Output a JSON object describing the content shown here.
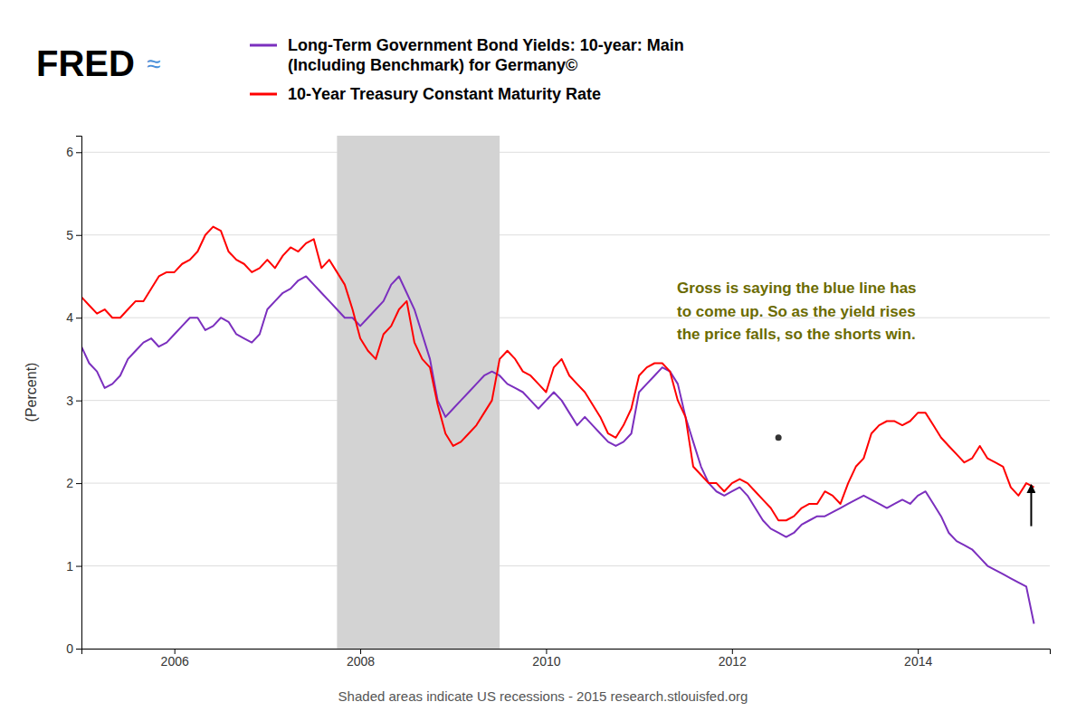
{
  "chart_data": {
    "type": "line",
    "logo": "FRED",
    "logo_mark": "≈",
    "y_label": "(Percent)",
    "footnote": "Shaded areas indicate US recessions - 2015 research.stlouisfed.org",
    "legend": "top",
    "grid": true,
    "xlim": [
      2005.0,
      2015.42
    ],
    "xticks": [
      2006,
      2008,
      2010,
      2012,
      2014
    ],
    "ylim": [
      0,
      6.2
    ],
    "yticks": [
      0,
      1,
      2,
      3,
      4,
      5,
      6
    ],
    "shaded_regions": [
      {
        "x_start": 2007.75,
        "x_end": 2009.5
      }
    ],
    "annotations": [
      {
        "type": "text",
        "text": "Gross is saying the blue line has\nto come up. So as the yield rises\nthe price falls, so the shorts win.",
        "color": "#6b6b00"
      },
      {
        "type": "point",
        "x": 2012.5,
        "y": 2.55
      },
      {
        "type": "arrow",
        "x": 2015.22,
        "y_start": 1.48,
        "y_end": 1.98
      }
    ],
    "x": [
      2005.0,
      2005.083,
      2005.167,
      2005.25,
      2005.333,
      2005.417,
      2005.5,
      2005.583,
      2005.667,
      2005.75,
      2005.833,
      2005.917,
      2006.0,
      2006.083,
      2006.167,
      2006.25,
      2006.333,
      2006.417,
      2006.5,
      2006.583,
      2006.667,
      2006.75,
      2006.833,
      2006.917,
      2007.0,
      2007.083,
      2007.167,
      2007.25,
      2007.333,
      2007.417,
      2007.5,
      2007.583,
      2007.667,
      2007.75,
      2007.833,
      2007.917,
      2008.0,
      2008.083,
      2008.167,
      2008.25,
      2008.333,
      2008.417,
      2008.5,
      2008.583,
      2008.667,
      2008.75,
      2008.833,
      2008.917,
      2009.0,
      2009.083,
      2009.167,
      2009.25,
      2009.333,
      2009.417,
      2009.5,
      2009.583,
      2009.667,
      2009.75,
      2009.833,
      2009.917,
      2010.0,
      2010.083,
      2010.167,
      2010.25,
      2010.333,
      2010.417,
      2010.5,
      2010.583,
      2010.667,
      2010.75,
      2010.833,
      2010.917,
      2011.0,
      2011.083,
      2011.167,
      2011.25,
      2011.333,
      2011.417,
      2011.5,
      2011.583,
      2011.667,
      2011.75,
      2011.833,
      2011.917,
      2012.0,
      2012.083,
      2012.167,
      2012.25,
      2012.333,
      2012.417,
      2012.5,
      2012.583,
      2012.667,
      2012.75,
      2012.833,
      2012.917,
      2013.0,
      2013.083,
      2013.167,
      2013.25,
      2013.333,
      2013.417,
      2013.5,
      2013.583,
      2013.667,
      2013.75,
      2013.833,
      2013.917,
      2014.0,
      2014.083,
      2014.167,
      2014.25,
      2014.333,
      2014.417,
      2014.5,
      2014.583,
      2014.667,
      2014.75,
      2014.833,
      2014.917,
      2015.0,
      2015.083,
      2015.167,
      2015.25
    ],
    "series": [
      {
        "name": "Long-Term Government Bond Yields: 10-year: Main\n(Including Benchmark) for Germany©",
        "color": "#7B2FBE",
        "values": [
          3.65,
          3.45,
          3.35,
          3.15,
          3.2,
          3.3,
          3.5,
          3.6,
          3.7,
          3.75,
          3.65,
          3.7,
          3.8,
          3.9,
          4.0,
          4.0,
          3.85,
          3.9,
          4.0,
          3.95,
          3.8,
          3.75,
          3.7,
          3.8,
          4.1,
          4.2,
          4.3,
          4.35,
          4.45,
          4.5,
          4.4,
          4.3,
          4.2,
          4.1,
          4.0,
          4.0,
          3.9,
          4.0,
          4.1,
          4.2,
          4.4,
          4.5,
          4.3,
          4.1,
          3.8,
          3.5,
          3.0,
          2.8,
          2.9,
          3.0,
          3.1,
          3.2,
          3.3,
          3.35,
          3.3,
          3.2,
          3.15,
          3.1,
          3.0,
          2.9,
          3.0,
          3.1,
          3.0,
          2.85,
          2.7,
          2.8,
          2.7,
          2.6,
          2.5,
          2.45,
          2.5,
          2.6,
          3.1,
          3.2,
          3.3,
          3.4,
          3.35,
          3.2,
          2.8,
          2.5,
          2.2,
          2.0,
          1.9,
          1.85,
          1.9,
          1.95,
          1.85,
          1.7,
          1.55,
          1.45,
          1.4,
          1.35,
          1.4,
          1.5,
          1.55,
          1.6,
          1.6,
          1.65,
          1.7,
          1.75,
          1.8,
          1.85,
          1.8,
          1.75,
          1.7,
          1.75,
          1.8,
          1.75,
          1.85,
          1.9,
          1.75,
          1.6,
          1.4,
          1.3,
          1.25,
          1.2,
          1.1,
          1.0,
          0.95,
          0.9,
          0.85,
          0.8,
          0.75,
          0.3
        ]
      },
      {
        "name": "10-Year Treasury Constant Maturity Rate",
        "color": "#ff0000",
        "values": [
          4.25,
          4.15,
          4.05,
          4.1,
          4.0,
          4.0,
          4.1,
          4.2,
          4.2,
          4.35,
          4.5,
          4.55,
          4.55,
          4.65,
          4.7,
          4.8,
          5.0,
          5.1,
          5.05,
          4.8,
          4.7,
          4.65,
          4.55,
          4.6,
          4.7,
          4.6,
          4.75,
          4.85,
          4.8,
          4.9,
          4.95,
          4.6,
          4.7,
          4.55,
          4.4,
          4.1,
          3.75,
          3.6,
          3.5,
          3.8,
          3.9,
          4.1,
          4.2,
          3.7,
          3.5,
          3.4,
          2.95,
          2.6,
          2.45,
          2.5,
          2.6,
          2.7,
          2.85,
          3.0,
          3.5,
          3.6,
          3.5,
          3.35,
          3.3,
          3.2,
          3.1,
          3.4,
          3.5,
          3.3,
          3.2,
          3.1,
          2.95,
          2.8,
          2.6,
          2.55,
          2.7,
          2.9,
          3.3,
          3.4,
          3.45,
          3.45,
          3.35,
          3.0,
          2.8,
          2.2,
          2.1,
          2.0,
          2.0,
          1.9,
          2.0,
          2.05,
          2.0,
          1.9,
          1.8,
          1.7,
          1.55,
          1.55,
          1.6,
          1.7,
          1.75,
          1.75,
          1.9,
          1.85,
          1.75,
          2.0,
          2.2,
          2.3,
          2.6,
          2.7,
          2.75,
          2.75,
          2.7,
          2.75,
          2.85,
          2.85,
          2.7,
          2.55,
          2.45,
          2.35,
          2.25,
          2.3,
          2.45,
          2.3,
          2.25,
          2.2,
          1.95,
          1.85,
          2.0,
          1.95
        ]
      }
    ]
  }
}
